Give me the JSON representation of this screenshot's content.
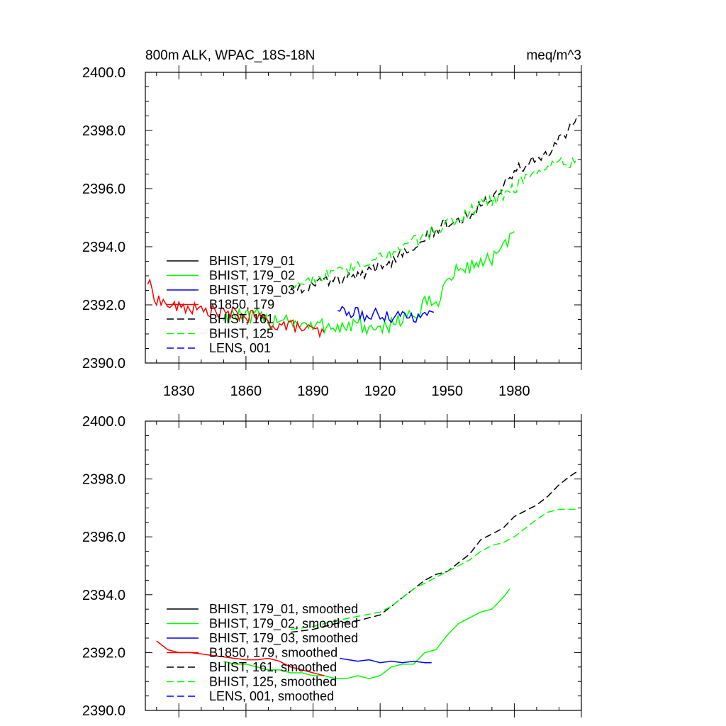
{
  "chart_data": [
    {
      "type": "line",
      "title": "800m ALK, WPAC_18S-18N",
      "units": "meq/m^3",
      "xlim": [
        1815,
        2010
      ],
      "ylim": [
        2390,
        2400
      ],
      "x_ticks": [
        "1830",
        "1860",
        "1890",
        "1920",
        "1950",
        "1980"
      ],
      "y_ticks": [
        "2400.0",
        "2398.0",
        "2396.0",
        "2394.0",
        "2392.0",
        "2390.0"
      ],
      "grid": false,
      "legend_position": "bottom-left",
      "series": [
        {
          "name": "BHIST, 179_01",
          "color": "#000000",
          "dash": "solid",
          "shown": false
        },
        {
          "name": "BHIST, 179_02",
          "color": "#00ff00",
          "dash": "solid",
          "x": [
            1850,
            1855,
            1860,
            1865,
            1870,
            1875,
            1880,
            1885,
            1890,
            1895,
            1900,
            1905,
            1910,
            1915,
            1920,
            1925,
            1930,
            1935,
            1940,
            1945,
            1950,
            1955,
            1960,
            1965,
            1970,
            1975,
            1980
          ],
          "y": [
            2391.6,
            2391.7,
            2391.5,
            2391.6,
            2391.4,
            2391.6,
            2391.5,
            2391.3,
            2391.2,
            2391.3,
            2391.3,
            2391.2,
            2391.4,
            2391.1,
            2391.0,
            2391.4,
            2391.6,
            2391.6,
            2392.0,
            2392.1,
            2392.8,
            2393.2,
            2393.3,
            2393.5,
            2393.6,
            2393.9,
            2394.4
          ],
          "noise": 0.3
        },
        {
          "name": "BHIST, 179_03",
          "color": "#0000ff",
          "dash": "solid",
          "x": [
            1901,
            1905,
            1910,
            1915,
            1920,
            1925,
            1930,
            1935,
            1940,
            1944
          ],
          "y": [
            2391.9,
            2391.7,
            2391.7,
            2391.6,
            2391.7,
            2391.6,
            2391.7,
            2391.6,
            2391.6,
            2391.7
          ],
          "noise": 0.22
        },
        {
          "name": "B1850, 179",
          "color": "#ff0000",
          "dash": "solid",
          "x": [
            1816,
            1820,
            1825,
            1830,
            1835,
            1840,
            1845,
            1850,
            1855,
            1860,
            1865,
            1870,
            1875,
            1880,
            1885,
            1890,
            1895
          ],
          "y": [
            2392.8,
            2392.2,
            2392.0,
            2391.9,
            2391.9,
            2391.8,
            2391.8,
            2391.7,
            2391.7,
            2391.6,
            2391.6,
            2391.4,
            2391.3,
            2391.3,
            2391.2,
            2391.1,
            2391.0
          ],
          "noise": 0.22
        },
        {
          "name": "BHIST, 161",
          "color": "#000000",
          "dash": "dashed",
          "x": [
            1880,
            1885,
            1890,
            1895,
            1900,
            1905,
            1910,
            1915,
            1920,
            1925,
            1930,
            1935,
            1940,
            1945,
            1950,
            1955,
            1960,
            1965,
            1970,
            1975,
            1980,
            1985,
            1990,
            1995,
            2000,
            2005,
            2008
          ],
          "y": [
            2392.6,
            2392.6,
            2392.7,
            2392.8,
            2392.8,
            2392.9,
            2393.0,
            2393.1,
            2393.3,
            2393.5,
            2393.8,
            2394.1,
            2394.4,
            2394.6,
            2394.8,
            2394.9,
            2395.1,
            2395.5,
            2395.8,
            2396.1,
            2396.6,
            2396.8,
            2397.0,
            2397.2,
            2397.6,
            2398.1,
            2398.3
          ],
          "noise": 0.22
        },
        {
          "name": "BHIST, 125",
          "color": "#00ff00",
          "dash": "dashed",
          "x": [
            1880,
            1885,
            1890,
            1895,
            1900,
            1905,
            1910,
            1915,
            1920,
            1925,
            1930,
            1935,
            1940,
            1945,
            1950,
            1955,
            1960,
            1965,
            1970,
            1975,
            1980,
            1985,
            1990,
            1995,
            2000,
            2005,
            2008
          ],
          "y": [
            2392.7,
            2392.8,
            2392.9,
            2393.0,
            2393.1,
            2393.2,
            2393.3,
            2393.4,
            2393.6,
            2393.8,
            2394.0,
            2394.2,
            2394.4,
            2394.6,
            2394.8,
            2394.9,
            2395.2,
            2395.5,
            2395.6,
            2395.8,
            2396.0,
            2396.4,
            2396.6,
            2396.8,
            2396.9,
            2396.9,
            2397.0
          ],
          "noise": 0.22
        },
        {
          "name": "LENS, 001",
          "color": "#0000ff",
          "dash": "dashed",
          "shown": false
        }
      ]
    },
    {
      "type": "line",
      "title": "",
      "xlim": [
        1815,
        2010
      ],
      "ylim": [
        2390,
        2400
      ],
      "x_ticks": [],
      "y_ticks": [
        "2400.0",
        "2398.0",
        "2396.0",
        "2394.0",
        "2392.0",
        "2390.0"
      ],
      "grid": false,
      "legend_position": "bottom-left",
      "series": [
        {
          "name": "BHIST, 179_01, smoothed",
          "color": "#000000",
          "dash": "solid",
          "shown": false
        },
        {
          "name": "BHIST, 179_02, smoothed",
          "color": "#00ff00",
          "dash": "solid",
          "x": [
            1850,
            1855,
            1860,
            1865,
            1870,
            1875,
            1880,
            1885,
            1890,
            1895,
            1900,
            1905,
            1910,
            1915,
            1920,
            1925,
            1930,
            1935,
            1940,
            1945,
            1950,
            1955,
            1960,
            1965,
            1970,
            1975,
            1978
          ],
          "y": [
            2391.7,
            2391.6,
            2391.6,
            2391.5,
            2391.4,
            2391.4,
            2391.3,
            2391.3,
            2391.2,
            2391.2,
            2391.1,
            2391.1,
            2391.2,
            2391.1,
            2391.2,
            2391.5,
            2391.6,
            2391.6,
            2392.0,
            2392.1,
            2392.6,
            2393.0,
            2393.2,
            2393.4,
            2393.5,
            2393.9,
            2394.2
          ],
          "noise": 0.0
        },
        {
          "name": "BHIST, 179_03, smoothed",
          "color": "#0000ff",
          "dash": "solid",
          "x": [
            1902,
            1906,
            1910,
            1915,
            1920,
            1925,
            1930,
            1935,
            1940,
            1943
          ],
          "y": [
            2391.8,
            2391.75,
            2391.7,
            2391.75,
            2391.65,
            2391.7,
            2391.65,
            2391.7,
            2391.65,
            2391.65
          ],
          "noise": 0.0
        },
        {
          "name": "B1850, 179, smoothed",
          "color": "#ff0000",
          "dash": "solid",
          "x": [
            1820,
            1825,
            1830,
            1835,
            1840,
            1845,
            1850,
            1855,
            1860,
            1865,
            1870,
            1875,
            1880,
            1885,
            1890,
            1895
          ],
          "y": [
            2392.4,
            2392.1,
            2392.0,
            2392.0,
            2391.95,
            2391.9,
            2391.85,
            2391.8,
            2391.75,
            2391.75,
            2391.8,
            2391.7,
            2391.5,
            2391.4,
            2391.3,
            2391.2
          ],
          "noise": 0.0
        },
        {
          "name": "BHIST, 161, smoothed",
          "color": "#000000",
          "dash": "dashed",
          "x": [
            1880,
            1890,
            1900,
            1910,
            1920,
            1925,
            1930,
            1935,
            1940,
            1945,
            1950,
            1955,
            1960,
            1965,
            1970,
            1975,
            1980,
            1985,
            1990,
            1995,
            2000,
            2005,
            2008
          ],
          "y": [
            2392.7,
            2392.8,
            2393.0,
            2393.1,
            2393.3,
            2393.6,
            2393.9,
            2394.2,
            2394.5,
            2394.7,
            2394.8,
            2395.1,
            2395.4,
            2395.9,
            2396.1,
            2396.3,
            2396.7,
            2396.9,
            2397.1,
            2397.4,
            2397.8,
            2398.1,
            2398.25
          ],
          "noise": 0.0
        },
        {
          "name": "BHIST, 125, smoothed",
          "color": "#00ff00",
          "dash": "dashed",
          "x": [
            1880,
            1890,
            1900,
            1910,
            1920,
            1925,
            1930,
            1935,
            1940,
            1945,
            1950,
            1955,
            1960,
            1965,
            1970,
            1975,
            1980,
            1985,
            1990,
            1995,
            2000,
            2005,
            2008
          ],
          "y": [
            2392.8,
            2392.9,
            2393.1,
            2393.25,
            2393.4,
            2393.6,
            2393.9,
            2394.2,
            2394.4,
            2394.6,
            2394.8,
            2395.0,
            2395.2,
            2395.5,
            2395.7,
            2395.8,
            2396.0,
            2396.3,
            2396.6,
            2396.85,
            2396.95,
            2396.95,
            2396.95
          ],
          "noise": 0.0
        },
        {
          "name": "LENS, 001, smoothed",
          "color": "#0000ff",
          "dash": "dashed",
          "shown": false
        }
      ]
    }
  ]
}
